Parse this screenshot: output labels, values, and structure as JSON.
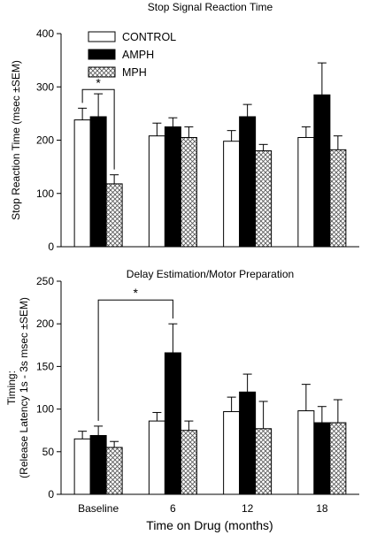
{
  "chart_data": [
    {
      "type": "bar",
      "title": "Stop Signal Reaction Time",
      "xlabel": "",
      "ylabel": "Stop Reaction Time (msec ±SEM)",
      "ylim": [
        0,
        400
      ],
      "yticks": [
        "0",
        "100",
        "200",
        "300",
        "400"
      ],
      "categories": [
        "Baseline",
        "6",
        "12",
        "18"
      ],
      "show_category_labels": false,
      "legend": "top-left",
      "series": [
        {
          "name": "CONTROL",
          "fill": "white",
          "values": [
            238,
            208,
            198,
            205
          ],
          "errors": [
            22,
            24,
            20,
            20
          ]
        },
        {
          "name": "AMPH",
          "fill": "black",
          "values": [
            244,
            225,
            244,
            285
          ],
          "errors": [
            43,
            17,
            23,
            60
          ]
        },
        {
          "name": "MPH",
          "fill": "crosshatch",
          "values": [
            118,
            205,
            180,
            182
          ],
          "errors": [
            17,
            20,
            12,
            26
          ]
        }
      ],
      "annotations": [
        {
          "text": "*",
          "from_category": 0,
          "from_series": 0,
          "to_category": 0,
          "to_series": 2,
          "bracket_y": 295
        }
      ]
    },
    {
      "type": "bar",
      "title": "Delay Estimation/Motor Preparation",
      "xlabel": "Time on Drug (months)",
      "ylabel": "Timing:\n(Release Latency 1s - 3s msec ±SEM)",
      "ylim": [
        0,
        250
      ],
      "yticks": [
        "0",
        "50",
        "100",
        "150",
        "200",
        "250"
      ],
      "categories": [
        "Baseline",
        "6",
        "12",
        "18"
      ],
      "show_category_labels": true,
      "series": [
        {
          "name": "CONTROL",
          "fill": "white",
          "values": [
            65,
            86,
            97,
            98
          ],
          "errors": [
            9,
            10,
            17,
            31
          ]
        },
        {
          "name": "AMPH",
          "fill": "black",
          "values": [
            69,
            166,
            120,
            84
          ],
          "errors": [
            11,
            34,
            21,
            19
          ]
        },
        {
          "name": "MPH",
          "fill": "crosshatch",
          "values": [
            55,
            75,
            77,
            84
          ],
          "errors": [
            7,
            11,
            32,
            27
          ]
        }
      ],
      "annotations": [
        {
          "text": "*",
          "from_category": 0,
          "from_series": 1,
          "to_category": 1,
          "to_series": 1,
          "bracket_y": 228
        }
      ]
    }
  ]
}
